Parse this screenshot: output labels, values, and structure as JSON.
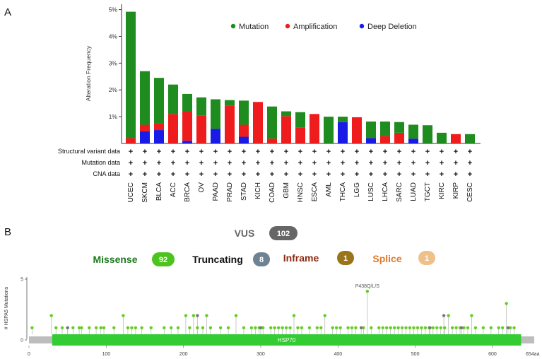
{
  "panel_a": {
    "letter": "A"
  },
  "panel_b": {
    "letter": "B"
  },
  "chart_data": [
    {
      "type": "bar",
      "ylabel": "Alteration Frequency",
      "ylim": [
        0,
        5.2
      ],
      "yticks": [
        "1%",
        "2%",
        "3%",
        "4%",
        "5%"
      ],
      "yticks_values": [
        1,
        2,
        3,
        4,
        5
      ],
      "legend_placement": "top-right",
      "categories": [
        "UCEC",
        "SKCM",
        "BLCA",
        "ACC",
        "BRCA",
        "OV",
        "PAAD",
        "PRAD",
        "STAD",
        "KICH",
        "COAD",
        "GBM",
        "HNSC",
        "ESCA",
        "AML",
        "THCA",
        "LGG",
        "LUSC",
        "LHCA",
        "SARC",
        "LUAD",
        "TGCT",
        "KIRC",
        "KIRP",
        "CESC"
      ],
      "series": [
        {
          "name": "Deep Deletion",
          "color": "#1a1ae6",
          "values": [
            0,
            0.45,
            0.5,
            0,
            0.1,
            0,
            0.55,
            0,
            0.25,
            0,
            0,
            0,
            0,
            0,
            0,
            0.8,
            0,
            0.2,
            0,
            0,
            0.18,
            0,
            0,
            0,
            0
          ]
        },
        {
          "name": "Amplification",
          "color": "#ee1c1c",
          "values": [
            0.2,
            0.25,
            0.25,
            1.1,
            1.1,
            1.05,
            0,
            1.42,
            0.45,
            1.55,
            0.18,
            1.02,
            0.6,
            1.1,
            0,
            0,
            0.98,
            0,
            0.28,
            0.4,
            0,
            0,
            0,
            0.35,
            0
          ]
        },
        {
          "name": "Mutation",
          "color": "#1f8c1f",
          "values": [
            4.72,
            2.0,
            1.7,
            1.1,
            0.65,
            0.67,
            1.1,
            0.2,
            0.9,
            0,
            1.2,
            0.18,
            0.57,
            0,
            1.0,
            0.2,
            0,
            0.62,
            0.54,
            0.4,
            0.52,
            0.68,
            0.4,
            0,
            0.35
          ]
        }
      ],
      "legend_order": [
        "Mutation",
        "Amplification",
        "Deep Deletion"
      ],
      "row_labels": [
        "Structural variant data",
        "Mutation data",
        "CNA data"
      ],
      "row_marker": "+"
    },
    {
      "type": "scatter",
      "ylabel": "# HSPA5 Mutations",
      "ylim": [
        0,
        5
      ],
      "yticks": [
        "0",
        "5"
      ],
      "yticks_values": [
        0,
        5
      ],
      "xlim": [
        0,
        654
      ],
      "xticks": [
        "0",
        "100",
        "200",
        "300",
        "400",
        "500",
        "600"
      ],
      "xticks_values": [
        0,
        100,
        200,
        300,
        400,
        500,
        600
      ],
      "x_end_label": "654aa",
      "domain": {
        "name": "HSP70",
        "start": 30,
        "end": 637,
        "color": "#33cc33"
      },
      "annotation": {
        "label": "P438Q/L/S",
        "x": 438
      },
      "colors": {
        "missense": "#66cc22",
        "truncating": "#777777"
      },
      "points_x": [
        4,
        29,
        35,
        43,
        50,
        57,
        65,
        68,
        78,
        87,
        93,
        97,
        110,
        122,
        128,
        133,
        138,
        146,
        158,
        175,
        184,
        193,
        203,
        208,
        213,
        218,
        225,
        230,
        235,
        248,
        258,
        268,
        278,
        288,
        293,
        298,
        303,
        313,
        318,
        323,
        328,
        333,
        338,
        343,
        348,
        353,
        363,
        373,
        378,
        383,
        393,
        398,
        403,
        413,
        418,
        423,
        433,
        438,
        443,
        453,
        458,
        463,
        468,
        473,
        478,
        483,
        488,
        493,
        498,
        503,
        508,
        513,
        518,
        523,
        528,
        533,
        538,
        543,
        548,
        553,
        558,
        563,
        568,
        573,
        578,
        588,
        598,
        608,
        613,
        618,
        623,
        628
      ],
      "points_y": [
        1,
        2,
        1,
        1,
        1,
        1,
        1,
        1,
        1,
        1,
        1,
        1,
        1,
        2,
        1,
        1,
        1,
        1,
        1,
        1,
        1,
        1,
        2,
        1,
        2,
        1,
        1,
        2,
        1,
        1,
        1,
        2,
        1,
        1,
        1,
        1,
        1,
        1,
        1,
        1,
        1,
        1,
        1,
        2,
        1,
        1,
        1,
        1,
        1,
        2,
        1,
        1,
        1,
        1,
        1,
        1,
        1,
        4,
        1,
        1,
        1,
        1,
        1,
        1,
        1,
        1,
        1,
        1,
        1,
        1,
        1,
        1,
        1,
        1,
        1,
        1,
        1,
        2,
        1,
        1,
        1,
        1,
        1,
        2,
        1,
        1,
        1,
        1,
        1,
        3,
        1,
        1
      ],
      "truncating_x": [
        50,
        218,
        300,
        430,
        519,
        537,
        560,
        620
      ],
      "truncating_y": [
        1,
        2,
        1,
        1,
        1,
        2,
        1,
        1
      ]
    }
  ],
  "mutation_counts": {
    "vus": {
      "label": "VUS",
      "count": "102",
      "color": "#666666"
    },
    "missense": {
      "label": "Missense",
      "count": "92",
      "color": "#4cc41e",
      "text_color": "#1e7a1e"
    },
    "truncating": {
      "label": "Truncating",
      "count": "8",
      "color": "#6f8291",
      "text_color": "#111111"
    },
    "inframe": {
      "label": "Inframe",
      "count": "1",
      "color": "#9a7419",
      "text_color": "#8b2a12"
    },
    "splice": {
      "label": "Splice",
      "count": "1",
      "color": "#f0c08a",
      "text_color": "#e07a2a"
    }
  }
}
